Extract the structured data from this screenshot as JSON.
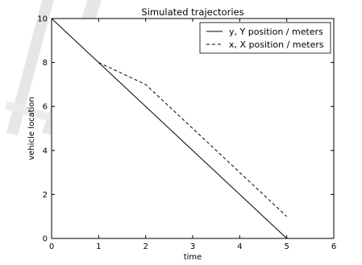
{
  "chart_data": {
    "type": "line",
    "title": "Simulated trajectories",
    "xlabel": "time",
    "ylabel": "vehicle location",
    "xlim": [
      0,
      6
    ],
    "ylim": [
      0,
      10
    ],
    "xticks": [
      0,
      1,
      2,
      3,
      4,
      5,
      6
    ],
    "yticks": [
      0,
      2,
      4,
      6,
      8,
      10
    ],
    "grid": false,
    "legend_position": "top-right",
    "series": [
      {
        "name": "y, Y position / meters",
        "style": "solid",
        "color": "#000000",
        "points": [
          [
            0,
            10
          ],
          [
            5,
            0
          ]
        ]
      },
      {
        "name": "x, X position / meters",
        "style": "dashed",
        "color": "#000000",
        "points": [
          [
            1,
            8
          ],
          [
            2,
            7
          ],
          [
            3,
            5
          ],
          [
            4,
            3
          ],
          [
            5,
            1
          ]
        ]
      }
    ]
  },
  "watermark": {
    "color": "#d9d9d9"
  }
}
